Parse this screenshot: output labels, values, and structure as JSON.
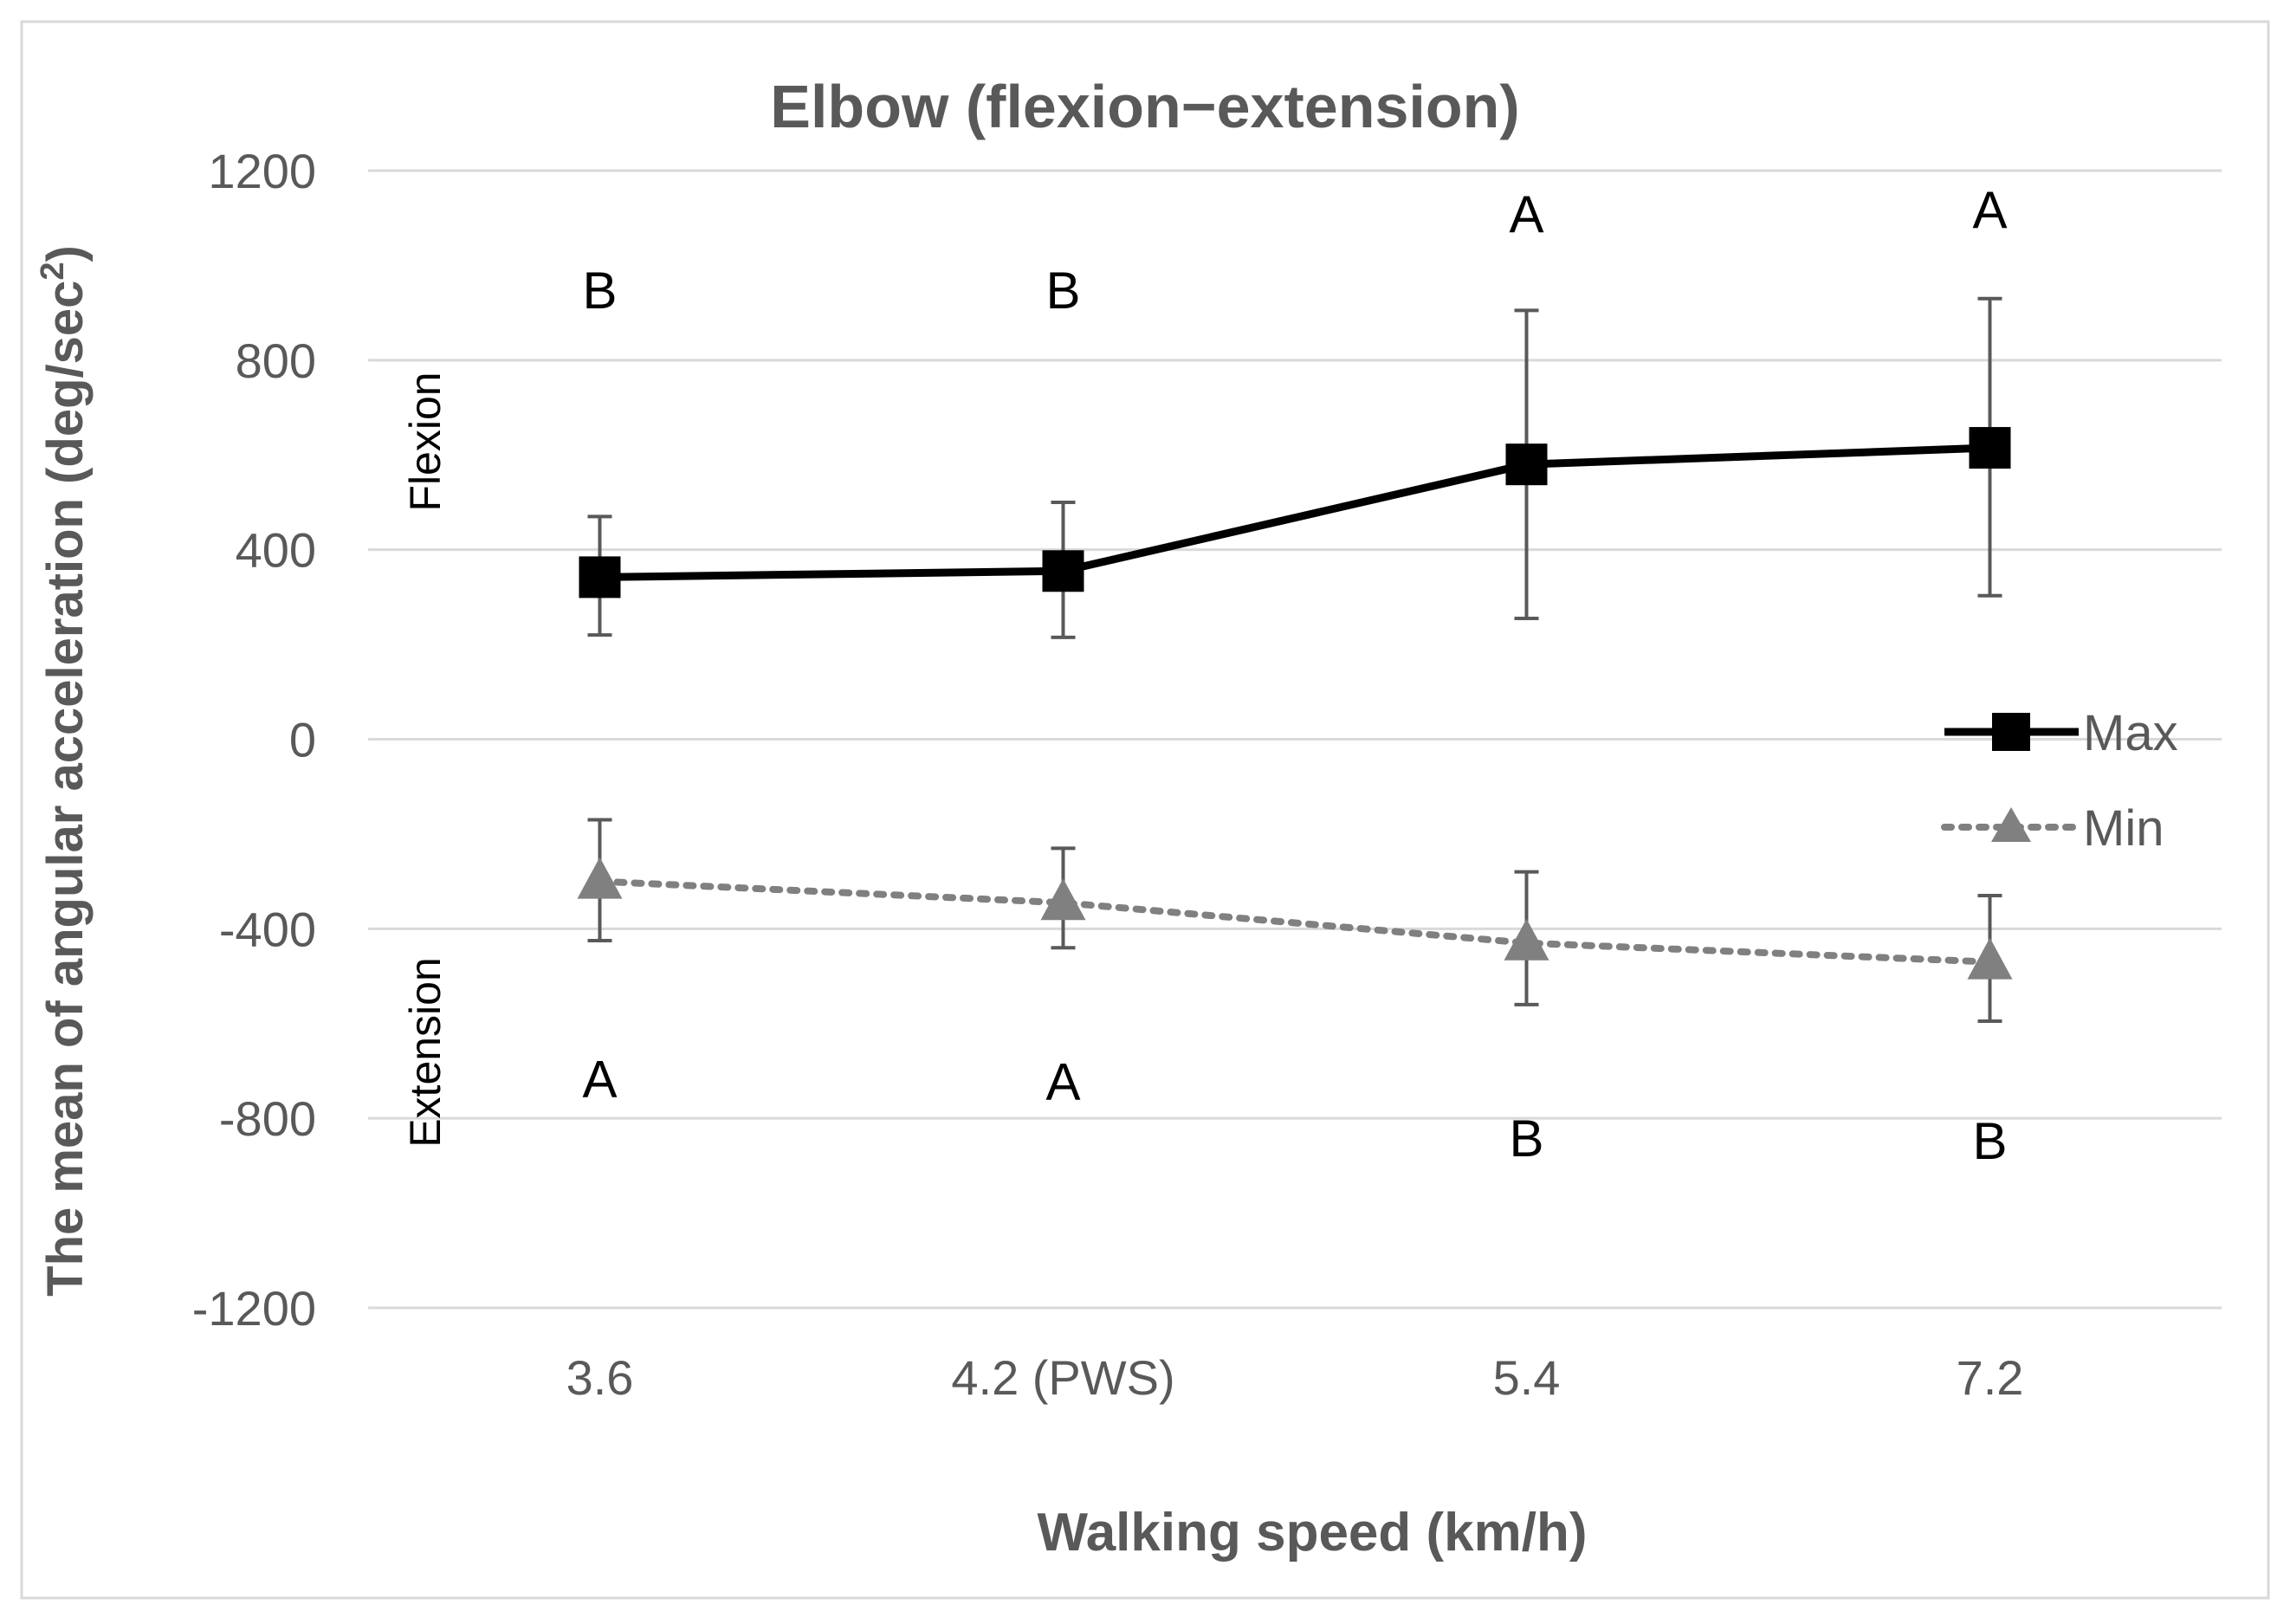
{
  "chart_data": {
    "type": "line",
    "title": "Elbow (flexion−extension)",
    "xlabel": "Walking speed (km/h)",
    "ylabel_main": "The mean of angular acceleration (deg/sec",
    "ylabel_sup": "2",
    "ylabel_close": ")",
    "ylim": [
      -1200,
      1200
    ],
    "yticks": [
      1200,
      800,
      400,
      0,
      -400,
      -800,
      -1200
    ],
    "categories": [
      "3.6",
      "4.2 (PWS)",
      "5.4",
      "7.2"
    ],
    "grid": true,
    "legend_position": "right",
    "series": [
      {
        "name": "Max",
        "color": "#000000",
        "style": "solid",
        "marker": "square",
        "values": [
          342,
          355,
          580,
          615
        ],
        "err_low": [
          220,
          215,
          255,
          303
        ],
        "err_high": [
          470,
          500,
          905,
          930
        ],
        "letters": [
          "B",
          "B",
          "A",
          "A"
        ],
        "letter_values": [
          950,
          950,
          1110,
          1120
        ]
      },
      {
        "name": "Min",
        "color": "#808080",
        "style": "dotted",
        "marker": "triangle",
        "values": [
          -300,
          -345,
          -430,
          -470
        ],
        "err_low": [
          -425,
          -440,
          -560,
          -595
        ],
        "err_high": [
          -170,
          -230,
          -280,
          -330
        ],
        "letters": [
          "A",
          "A",
          "B",
          "B"
        ],
        "letter_values": [
          -715,
          -720,
          -840,
          -845
        ]
      }
    ],
    "annotations": {
      "flexion": "Flexion",
      "extension": "Extension"
    }
  }
}
